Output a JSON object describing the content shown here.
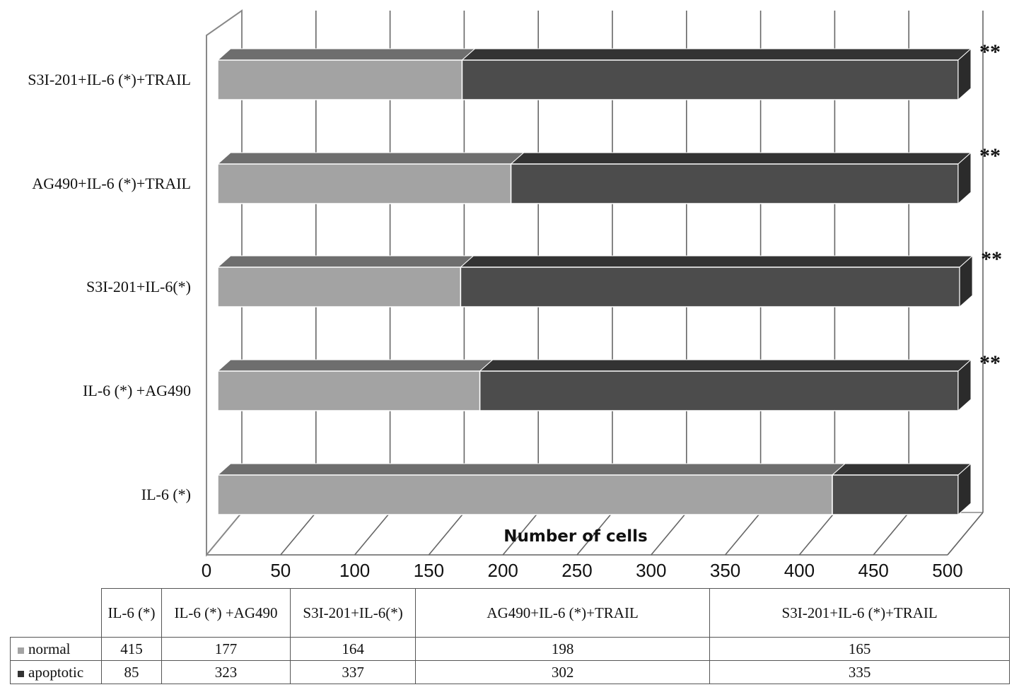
{
  "chart_data": {
    "type": "bar",
    "orientation": "horizontal",
    "stacked": true,
    "style": "3d",
    "categories": [
      "IL-6 (*)",
      "IL-6 (*) +AG490",
      "S3I-201+IL-6(*)",
      "AG490+IL-6 (*)+TRAIL",
      "S3I-201+IL-6 (*)+TRAIL"
    ],
    "series": [
      {
        "name": "normal",
        "values": [
          415,
          177,
          164,
          198,
          165
        ],
        "color": "#a3a3a3"
      },
      {
        "name": "apoptotic",
        "values": [
          85,
          323,
          337,
          302,
          335
        ],
        "color": "#4c4c4c"
      }
    ],
    "significance": [
      "",
      "**",
      "**",
      "**",
      "**"
    ],
    "xlabel": "Number of cells",
    "ylabel": "",
    "xlim": [
      0,
      500
    ],
    "xticks": [
      "0",
      "50",
      "100",
      "150",
      "200",
      "250",
      "300",
      "350",
      "400",
      "450",
      "500"
    ],
    "grid": true,
    "legend": "data-table"
  }
}
